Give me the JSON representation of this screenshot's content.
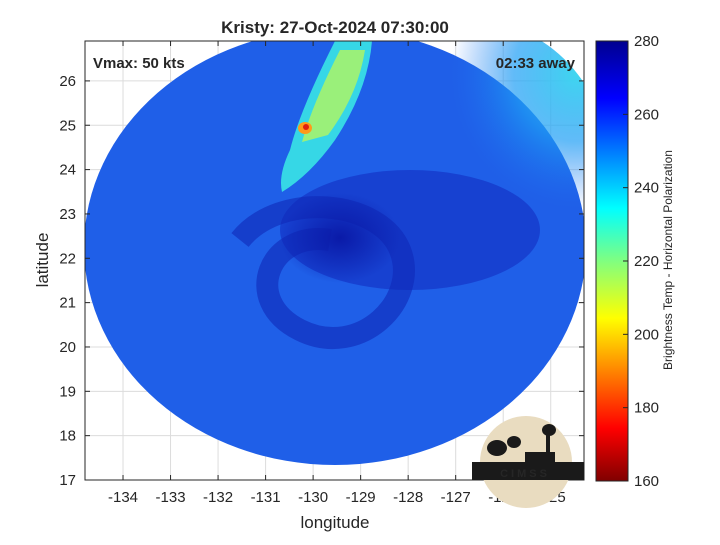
{
  "chart_data": {
    "type": "heatmap",
    "title": "Kristy: 27-Oct-2024 07:30:00",
    "xlabel": "longitude",
    "ylabel": "latitude",
    "xlim": [
      -134.8,
      -124.3
    ],
    "ylim": [
      17,
      26.9
    ],
    "x_ticks": [
      -134,
      -133,
      -132,
      -131,
      -130,
      -129,
      -128,
      -127,
      -126,
      -125
    ],
    "y_ticks": [
      17,
      18,
      19,
      20,
      21,
      22,
      23,
      24,
      25,
      26
    ],
    "grid": true,
    "annotations": {
      "vmax": "Vmax: 50 kts",
      "time_away": "02:33 away"
    },
    "colorbar": {
      "label": "Brightness Temp - Horizontal Polarization",
      "range": [
        160,
        280
      ],
      "ticks": [
        160,
        180,
        200,
        220,
        240,
        260,
        280
      ],
      "colormap": "jet"
    },
    "swath": {
      "shape": "circle",
      "center": [
        -129.8,
        21.4
      ],
      "values_note": "mostly 250-265 K background; warmer 240-250 K in the northeast; cold rain band 200-230 K near 24-27 N, -130.5 to -129 E"
    },
    "storm_center": [
      -129.4,
      22.5
    ],
    "logo": "CIMSS"
  }
}
